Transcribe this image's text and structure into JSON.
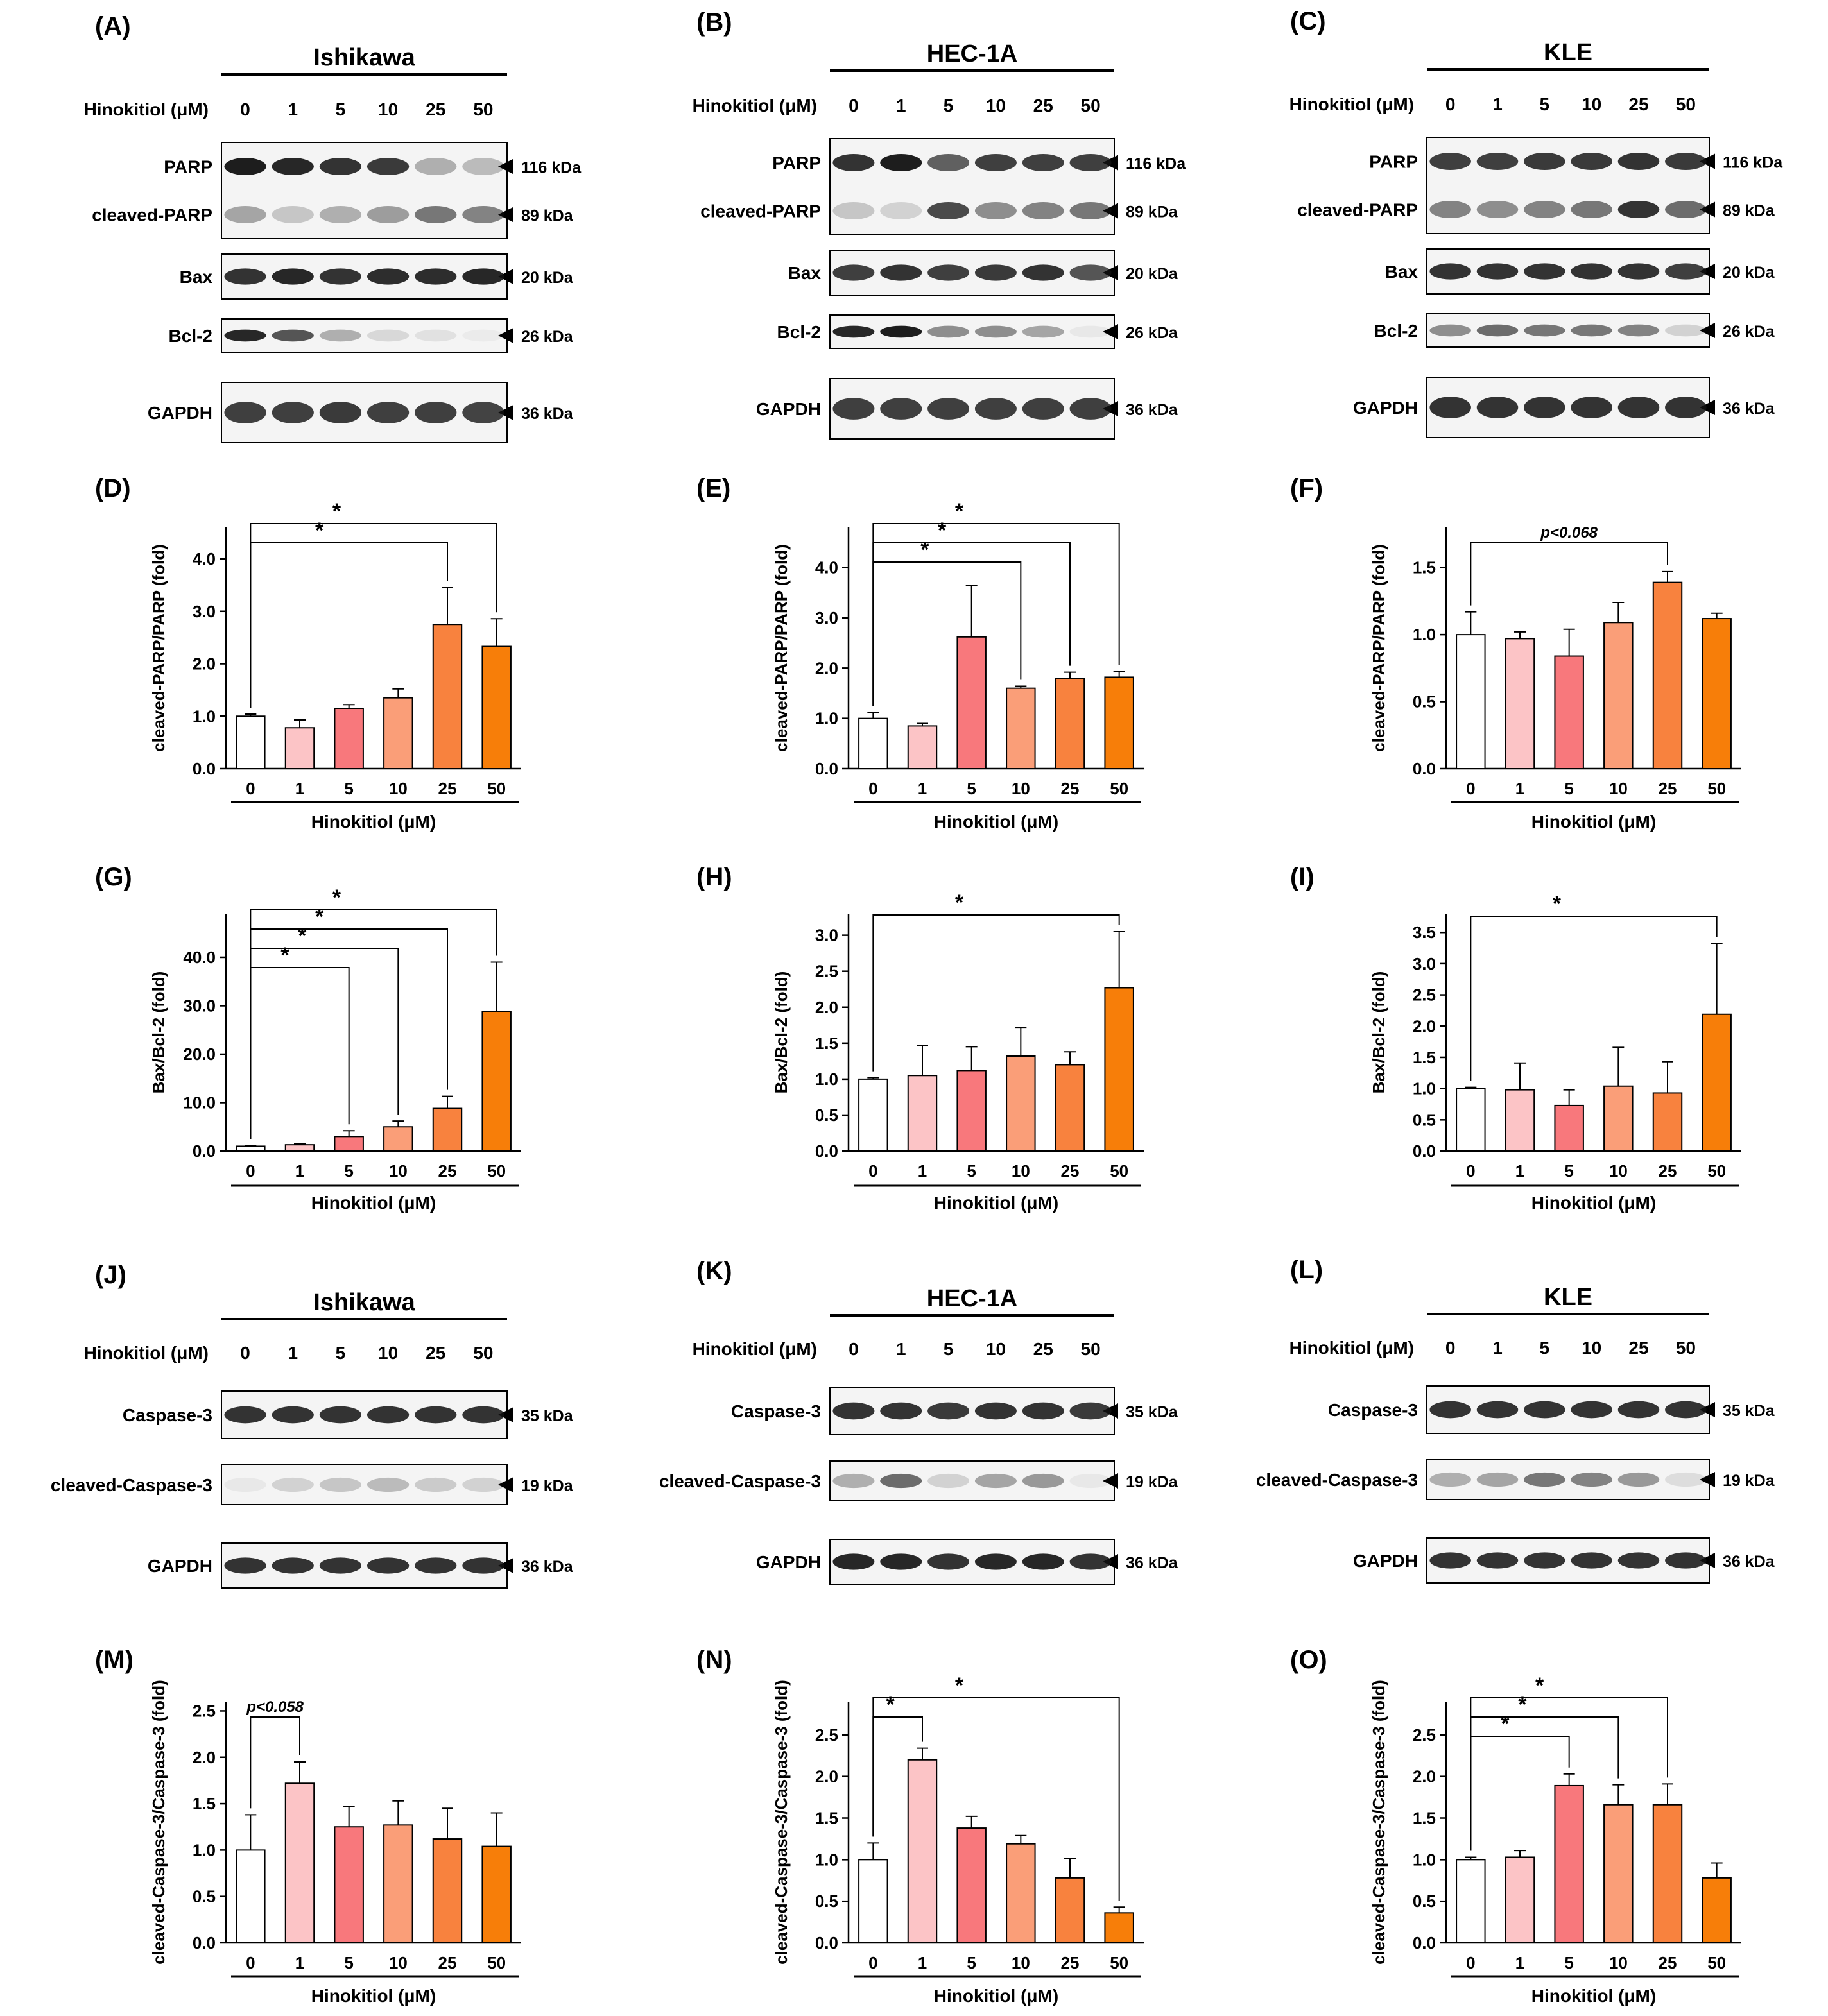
{
  "colors": [
    "#ffffff",
    "#fcc4c6",
    "#f8787c",
    "#fa9e78",
    "#f8823e",
    "#f77e09"
  ],
  "blots": [
    {
      "panel": "(A)",
      "cell": "Ishikawa",
      "treat": "Hinokitiol (μM)",
      "doses": [
        "0",
        "1",
        "5",
        "10",
        "25",
        "50"
      ],
      "rows": [
        {
          "group": 0,
          "name": "PARP",
          "kda": "116 kDa",
          "int": [
            0.95,
            0.9,
            0.85,
            0.82,
            0.3,
            0.25
          ]
        },
        {
          "group": 0,
          "name": "cleaved-PARP",
          "kda": "89 kDa",
          "int": [
            0.35,
            0.2,
            0.3,
            0.38,
            0.55,
            0.5
          ]
        },
        {
          "group": 1,
          "name": "Bax",
          "kda": "20 kDa",
          "int": [
            0.85,
            0.9,
            0.85,
            0.88,
            0.88,
            0.9
          ]
        },
        {
          "group": 2,
          "name": "Bcl-2",
          "kda": "26 kDa",
          "int": [
            0.9,
            0.7,
            0.3,
            0.12,
            0.08,
            0.04
          ]
        },
        {
          "group": 3,
          "name": "GAPDH",
          "kda": "36 kDa",
          "int": [
            0.8,
            0.8,
            0.82,
            0.8,
            0.8,
            0.78
          ]
        }
      ]
    },
    {
      "panel": "(B)",
      "cell": "HEC-1A",
      "treat": "Hinokitiol (μM)",
      "doses": [
        "0",
        "1",
        "5",
        "10",
        "25",
        "50"
      ],
      "rows": [
        {
          "group": 0,
          "name": "PARP",
          "kda": "116 kDa",
          "int": [
            0.85,
            0.95,
            0.65,
            0.8,
            0.8,
            0.8
          ]
        },
        {
          "group": 0,
          "name": "cleaved-PARP",
          "kda": "89 kDa",
          "int": [
            0.2,
            0.15,
            0.75,
            0.45,
            0.5,
            0.55
          ]
        },
        {
          "group": 1,
          "name": "Bax",
          "kda": "20 kDa",
          "int": [
            0.8,
            0.85,
            0.8,
            0.82,
            0.85,
            0.7
          ]
        },
        {
          "group": 2,
          "name": "Bcl-2",
          "kda": "26 kDa",
          "int": [
            0.9,
            0.95,
            0.45,
            0.45,
            0.35,
            0.05
          ]
        },
        {
          "group": 3,
          "name": "GAPDH",
          "kda": "36 kDa",
          "int": [
            0.8,
            0.8,
            0.8,
            0.8,
            0.8,
            0.8
          ]
        }
      ]
    },
    {
      "panel": "(C)",
      "cell": "KLE",
      "treat": "Hinokitiol (μM)",
      "doses": [
        "0",
        "1",
        "5",
        "10",
        "25",
        "50"
      ],
      "rows": [
        {
          "group": 0,
          "name": "PARP",
          "kda": "116 kDa",
          "int": [
            0.8,
            0.8,
            0.82,
            0.82,
            0.85,
            0.82
          ]
        },
        {
          "group": 0,
          "name": "cleaved-PARP",
          "kda": "89 kDa",
          "int": [
            0.5,
            0.45,
            0.5,
            0.55,
            0.85,
            0.6
          ]
        },
        {
          "group": 1,
          "name": "Bax",
          "kda": "20 kDa",
          "int": [
            0.85,
            0.85,
            0.85,
            0.85,
            0.85,
            0.8
          ]
        },
        {
          "group": 2,
          "name": "Bcl-2",
          "kda": "26 kDa",
          "int": [
            0.45,
            0.6,
            0.55,
            0.55,
            0.5,
            0.15
          ]
        },
        {
          "group": 3,
          "name": "GAPDH",
          "kda": "36 kDa",
          "int": [
            0.85,
            0.85,
            0.85,
            0.85,
            0.85,
            0.85
          ]
        }
      ]
    },
    {
      "panel": "(J)",
      "cell": "Ishikawa",
      "treat": "Hinokitiol (μM)",
      "doses": [
        "0",
        "1",
        "5",
        "10",
        "25",
        "50"
      ],
      "rows": [
        {
          "group": 0,
          "name": "Caspase-3",
          "kda": "35 kDa",
          "int": [
            0.85,
            0.85,
            0.85,
            0.85,
            0.85,
            0.85
          ]
        },
        {
          "group": 1,
          "name": "cleaved-Caspase-3",
          "kda": "19 kDa",
          "int": [
            0.05,
            0.15,
            0.2,
            0.25,
            0.18,
            0.15
          ]
        },
        {
          "group": 2,
          "name": "GAPDH",
          "kda": "36 kDa",
          "int": [
            0.85,
            0.85,
            0.85,
            0.85,
            0.85,
            0.85
          ]
        }
      ]
    },
    {
      "panel": "(K)",
      "cell": "HEC-1A",
      "treat": "Hinokitiol (μM)",
      "doses": [
        "0",
        "1",
        "5",
        "10",
        "25",
        "50"
      ],
      "rows": [
        {
          "group": 0,
          "name": "Caspase-3",
          "kda": "35 kDa",
          "int": [
            0.85,
            0.85,
            0.82,
            0.85,
            0.85,
            0.82
          ]
        },
        {
          "group": 1,
          "name": "cleaved-Caspase-3",
          "kda": "19 kDa",
          "int": [
            0.3,
            0.6,
            0.15,
            0.35,
            0.4,
            0.05
          ]
        },
        {
          "group": 2,
          "name": "GAPDH",
          "kda": "36 kDa",
          "int": [
            0.9,
            0.9,
            0.85,
            0.9,
            0.9,
            0.85
          ]
        }
      ]
    },
    {
      "panel": "(L)",
      "cell": "KLE",
      "treat": "Hinokitiol (μM)",
      "doses": [
        "0",
        "1",
        "5",
        "10",
        "25",
        "50"
      ],
      "rows": [
        {
          "group": 0,
          "name": "Caspase-3",
          "kda": "35 kDa",
          "int": [
            0.85,
            0.85,
            0.85,
            0.85,
            0.85,
            0.85
          ]
        },
        {
          "group": 1,
          "name": "cleaved-Caspase-3",
          "kda": "19 kDa",
          "int": [
            0.3,
            0.35,
            0.55,
            0.5,
            0.4,
            0.1
          ]
        },
        {
          "group": 2,
          "name": "GAPDH",
          "kda": "36 kDa",
          "int": [
            0.85,
            0.85,
            0.85,
            0.85,
            0.85,
            0.85
          ]
        }
      ]
    }
  ],
  "chart_data": [
    {
      "panel": "(D)",
      "type": "bar",
      "categories": [
        "0",
        "1",
        "5",
        "10",
        "25",
        "50"
      ],
      "values": [
        1.0,
        0.78,
        1.15,
        1.35,
        2.75,
        2.33
      ],
      "errors": [
        0.04,
        0.15,
        0.07,
        0.17,
        0.7,
        0.53
      ],
      "xlabel": "Hinokitiol (μM)",
      "ylabel": "cleaved-PARP/PARP (fold)",
      "ylim": [
        0,
        4.6
      ],
      "ticks": [
        0,
        1,
        2,
        3,
        4
      ],
      "tick_labels": [
        "0.0",
        "1.0",
        "2.0",
        "3.0",
        "4.0"
      ],
      "sig": [
        {
          "from": 0,
          "to": 4,
          "label": "*",
          "italic": false
        },
        {
          "from": 0,
          "to": 5,
          "label": "*",
          "italic": false
        }
      ]
    },
    {
      "panel": "(E)",
      "type": "bar",
      "categories": [
        "0",
        "1",
        "5",
        "10",
        "25",
        "50"
      ],
      "values": [
        1.0,
        0.85,
        2.62,
        1.6,
        1.8,
        1.82
      ],
      "errors": [
        0.12,
        0.05,
        1.02,
        0.04,
        0.12,
        0.12
      ],
      "xlabel": "Hinokitiol (μM)",
      "ylabel": "cleaved-PARP/PARP (fold)",
      "ylim": [
        0,
        4.8
      ],
      "ticks": [
        0,
        1,
        2,
        3,
        4
      ],
      "tick_labels": [
        "0.0",
        "1.0",
        "2.0",
        "3.0",
        "4.0"
      ],
      "sig": [
        {
          "from": 0,
          "to": 3,
          "label": "*",
          "italic": false
        },
        {
          "from": 0,
          "to": 4,
          "label": "*",
          "italic": false
        },
        {
          "from": 0,
          "to": 5,
          "label": "*",
          "italic": false
        }
      ]
    },
    {
      "panel": "(F)",
      "type": "bar",
      "categories": [
        "0",
        "1",
        "5",
        "10",
        "25",
        "50"
      ],
      "values": [
        1.0,
        0.97,
        0.84,
        1.09,
        1.39,
        1.12
      ],
      "errors": [
        0.17,
        0.05,
        0.2,
        0.15,
        0.08,
        0.04
      ],
      "xlabel": "Hinokitiol (μM)",
      "ylabel": "cleaved-PARP/PARP (fold)",
      "ylim": [
        0,
        1.8
      ],
      "ticks": [
        0,
        0.5,
        1,
        1.5
      ],
      "tick_labels": [
        "0.0",
        "0.5",
        "1.0",
        "1.5"
      ],
      "sig": [
        {
          "from": 0,
          "to": 4,
          "label": "p<0.068",
          "italic": true
        }
      ]
    },
    {
      "panel": "(G)",
      "type": "bar",
      "categories": [
        "0",
        "1",
        "5",
        "10",
        "25",
        "50"
      ],
      "values": [
        1.0,
        1.3,
        3.0,
        5.0,
        8.8,
        28.8
      ],
      "errors": [
        0.2,
        0.2,
        1.2,
        1.2,
        2.5,
        10.2
      ],
      "xlabel": "Hinokitiol (μM)",
      "ylabel": "Bax/Bcl-2 (fold)",
      "ylim": [
        0,
        49
      ],
      "ticks": [
        0,
        10,
        20,
        30,
        40
      ],
      "tick_labels": [
        "0.0",
        "10.0",
        "20.0",
        "30.0",
        "40.0"
      ],
      "sig": [
        {
          "from": 0,
          "to": 2,
          "label": "*",
          "italic": false
        },
        {
          "from": 0,
          "to": 3,
          "label": "*",
          "italic": false
        },
        {
          "from": 0,
          "to": 4,
          "label": "*",
          "italic": false
        },
        {
          "from": 0,
          "to": 5,
          "label": "*",
          "italic": false
        }
      ]
    },
    {
      "panel": "(H)",
      "type": "bar",
      "categories": [
        "0",
        "1",
        "5",
        "10",
        "25",
        "50"
      ],
      "values": [
        1.0,
        1.05,
        1.12,
        1.32,
        1.2,
        2.27
      ],
      "errors": [
        0.02,
        0.42,
        0.33,
        0.4,
        0.18,
        0.78
      ],
      "xlabel": "Hinokitiol (μM)",
      "ylabel": "Bax/Bcl-2 (fold)",
      "ylim": [
        0,
        3.3
      ],
      "ticks": [
        0,
        0.5,
        1,
        1.5,
        2,
        2.5,
        3
      ],
      "tick_labels": [
        "0.0",
        "0.5",
        "1.0",
        "1.5",
        "2.0",
        "2.5",
        "3.0"
      ],
      "sig": [
        {
          "from": 0,
          "to": 5,
          "label": "*",
          "italic": false
        }
      ]
    },
    {
      "panel": "(I)",
      "type": "bar",
      "categories": [
        "0",
        "1",
        "5",
        "10",
        "25",
        "50"
      ],
      "values": [
        1.0,
        0.98,
        0.73,
        1.04,
        0.93,
        2.19
      ],
      "errors": [
        0.02,
        0.43,
        0.25,
        0.62,
        0.5,
        1.13
      ],
      "xlabel": "Hinokitiol (μM)",
      "ylabel": "Bax/Bcl-2 (fold)",
      "ylim": [
        0,
        3.8
      ],
      "ticks": [
        0,
        0.5,
        1,
        1.5,
        2,
        2.5,
        3,
        3.5
      ],
      "tick_labels": [
        "0.0",
        "0.5",
        "1.0",
        "1.5",
        "2.0",
        "2.5",
        "3.0",
        "3.5"
      ],
      "sig": [
        {
          "from": 0,
          "to": 5,
          "label": "*",
          "italic": false
        }
      ]
    },
    {
      "panel": "(M)",
      "type": "bar",
      "categories": [
        "0",
        "1",
        "5",
        "10",
        "25",
        "50"
      ],
      "values": [
        1.0,
        1.72,
        1.25,
        1.27,
        1.12,
        1.04
      ],
      "errors": [
        0.38,
        0.23,
        0.22,
        0.26,
        0.33,
        0.36
      ],
      "xlabel": "Hinokitiol (μM)",
      "ylabel": "cleaved-Caspase-3/Caspase-3 (fold)",
      "ylim": [
        0,
        2.6
      ],
      "ticks": [
        0,
        0.5,
        1,
        1.5,
        2,
        2.5
      ],
      "tick_labels": [
        "0.0",
        "0.5",
        "1.0",
        "1.5",
        "2.0",
        "2.5"
      ],
      "sig": [
        {
          "from": 0,
          "to": 1,
          "label": "p<0.058",
          "italic": true
        }
      ]
    },
    {
      "panel": "(N)",
      "type": "bar",
      "categories": [
        "0",
        "1",
        "5",
        "10",
        "25",
        "50"
      ],
      "values": [
        1.0,
        2.2,
        1.38,
        1.19,
        0.78,
        0.36
      ],
      "errors": [
        0.2,
        0.14,
        0.14,
        0.1,
        0.23,
        0.07
      ],
      "xlabel": "Hinokitiol (μM)",
      "ylabel": "cleaved-Caspase-3/Caspase-3 (fold)",
      "ylim": [
        0,
        2.9
      ],
      "ticks": [
        0,
        0.5,
        1,
        1.5,
        2,
        2.5
      ],
      "tick_labels": [
        "0.0",
        "0.5",
        "1.0",
        "1.5",
        "2.0",
        "2.5"
      ],
      "sig": [
        {
          "from": 0,
          "to": 1,
          "label": "*",
          "italic": false
        },
        {
          "from": 0,
          "to": 5,
          "label": "*",
          "italic": false
        }
      ]
    },
    {
      "panel": "(O)",
      "type": "bar",
      "categories": [
        "0",
        "1",
        "5",
        "10",
        "25",
        "50"
      ],
      "values": [
        1.0,
        1.03,
        1.89,
        1.66,
        1.66,
        0.78
      ],
      "errors": [
        0.03,
        0.08,
        0.14,
        0.24,
        0.25,
        0.18
      ],
      "xlabel": "Hinokitiol (μM)",
      "ylabel": "cleaved-Caspase-3/Caspase-3 (fold)",
      "ylim": [
        0,
        2.9
      ],
      "ticks": [
        0,
        0.5,
        1,
        1.5,
        2,
        2.5
      ],
      "tick_labels": [
        "0.0",
        "0.5",
        "1.0",
        "1.5",
        "2.0",
        "2.5"
      ],
      "sig": [
        {
          "from": 0,
          "to": 2,
          "label": "*",
          "italic": false
        },
        {
          "from": 0,
          "to": 3,
          "label": "*",
          "italic": false
        },
        {
          "from": 0,
          "to": 4,
          "label": "*",
          "italic": false
        }
      ]
    }
  ]
}
